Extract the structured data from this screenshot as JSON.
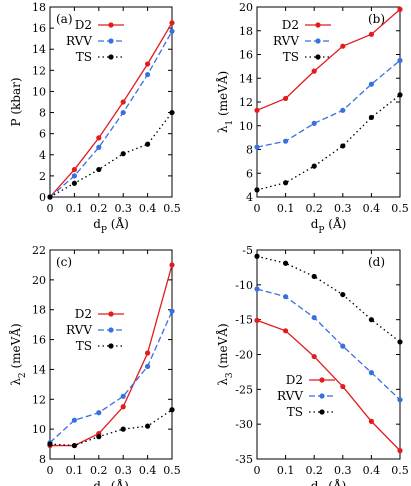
{
  "colors": {
    "D2": "#e41a1c",
    "RVV": "#3a6fe0",
    "TS": "#000000"
  },
  "chart_data": [
    {
      "panel_label": "(a)",
      "type": "line",
      "xlabel": "d_P (Å)",
      "ylabel": "P (kbar)",
      "xlim": [
        0,
        0.5
      ],
      "ylim": [
        0,
        18
      ],
      "xticks": [
        0,
        0.1,
        0.2,
        0.3,
        0.4,
        0.5
      ],
      "xtick_labels": [
        "0",
        "0.1",
        "0.2",
        "0.3",
        "0.4",
        "0.5"
      ],
      "yticks": [
        0,
        2,
        4,
        6,
        8,
        10,
        12,
        14,
        16,
        18
      ],
      "ytick_labels": [
        "0",
        "2",
        "4",
        "6",
        "8",
        "10",
        "12",
        "14",
        "16",
        "18"
      ],
      "legend": "top-left",
      "grid": false,
      "x": [
        0,
        0.1,
        0.2,
        0.3,
        0.4,
        0.5
      ],
      "series": [
        {
          "name": "D2",
          "style": "solid",
          "values": [
            0,
            2.6,
            5.6,
            9.0,
            12.6,
            16.5
          ]
        },
        {
          "name": "RVV",
          "style": "dashed",
          "values": [
            0,
            2.0,
            4.7,
            8.0,
            11.6,
            15.7
          ]
        },
        {
          "name": "TS",
          "style": "dotted",
          "values": [
            0,
            1.3,
            2.6,
            4.1,
            5.0,
            8.0
          ]
        }
      ]
    },
    {
      "panel_label": "(b)",
      "type": "line",
      "xlabel": "d_P (Å)",
      "ylabel": "λ_1 (meVÅ)",
      "xlim": [
        0,
        0.5
      ],
      "ylim": [
        4,
        20
      ],
      "xticks": [
        0,
        0.1,
        0.2,
        0.3,
        0.4,
        0.5
      ],
      "xtick_labels": [
        "0",
        "0.1",
        "0.2",
        "0.3",
        "0.4",
        "0.5"
      ],
      "yticks": [
        4,
        6,
        8,
        10,
        12,
        14,
        16,
        18,
        20
      ],
      "ytick_labels": [
        "4",
        "6",
        "8",
        "10",
        "12",
        "14",
        "16",
        "18",
        "20"
      ],
      "legend": "top-left",
      "grid": false,
      "x": [
        0,
        0.1,
        0.2,
        0.3,
        0.4,
        0.5
      ],
      "series": [
        {
          "name": "D2",
          "style": "solid",
          "values": [
            11.3,
            12.3,
            14.6,
            16.7,
            17.7,
            19.8
          ]
        },
        {
          "name": "RVV",
          "style": "dashed",
          "values": [
            8.2,
            8.7,
            10.2,
            11.3,
            13.5,
            15.5
          ]
        },
        {
          "name": "TS",
          "style": "dotted",
          "values": [
            4.6,
            5.2,
            6.6,
            8.3,
            10.7,
            12.6
          ]
        }
      ]
    },
    {
      "panel_label": "(c)",
      "type": "line",
      "xlabel": "d_P (Å)",
      "ylabel": "λ_2 (meVÅ)",
      "xlim": [
        0,
        0.5
      ],
      "ylim": [
        8,
        22
      ],
      "xticks": [
        0,
        0.1,
        0.2,
        0.3,
        0.4,
        0.5
      ],
      "xtick_labels": [
        "0",
        "0.1",
        "0.2",
        "0.3",
        "0.4",
        "0.5"
      ],
      "yticks": [
        8,
        10,
        12,
        14,
        16,
        18,
        20,
        22
      ],
      "ytick_labels": [
        "8",
        "10",
        "12",
        "14",
        "16",
        "18",
        "20",
        "22"
      ],
      "legend": "mid-left",
      "grid": false,
      "x": [
        0,
        0.1,
        0.2,
        0.3,
        0.4,
        0.5
      ],
      "series": [
        {
          "name": "D2",
          "style": "solid",
          "values": [
            8.9,
            8.9,
            9.7,
            11.5,
            15.1,
            21.0
          ]
        },
        {
          "name": "RVV",
          "style": "dashed",
          "values": [
            9.1,
            10.6,
            11.1,
            12.2,
            14.2,
            17.9
          ]
        },
        {
          "name": "TS",
          "style": "dotted",
          "values": [
            9.0,
            8.9,
            9.5,
            10.0,
            10.2,
            11.3
          ]
        }
      ]
    },
    {
      "panel_label": "(d)",
      "type": "line",
      "xlabel": "d_P (Å)",
      "ylabel": "λ_3 (meVÅ)",
      "xlim": [
        0,
        0.5
      ],
      "ylim": [
        -35,
        -5
      ],
      "xticks": [
        0,
        0.1,
        0.2,
        0.3,
        0.4,
        0.5
      ],
      "xtick_labels": [
        "0",
        "0.1",
        "0.2",
        "0.3",
        "0.4",
        "0.5"
      ],
      "yticks": [
        -35,
        -30,
        -25,
        -20,
        -15,
        -10,
        -5
      ],
      "ytick_labels": [
        "-35",
        "-30",
        "-25",
        "-20",
        "-15",
        "-10",
        "-5"
      ],
      "legend": "bottom-left",
      "grid": false,
      "x": [
        0,
        0.1,
        0.2,
        0.3,
        0.4,
        0.5
      ],
      "series": [
        {
          "name": "D2",
          "style": "solid",
          "values": [
            -15.1,
            -16.6,
            -20.3,
            -24.6,
            -29.6,
            -33.8
          ]
        },
        {
          "name": "RVV",
          "style": "dashed",
          "values": [
            -10.6,
            -11.7,
            -14.7,
            -18.8,
            -22.6,
            -26.5
          ]
        },
        {
          "name": "TS",
          "style": "dotted",
          "values": [
            -5.9,
            -6.9,
            -8.8,
            -11.4,
            -15.0,
            -18.2
          ]
        }
      ]
    }
  ]
}
